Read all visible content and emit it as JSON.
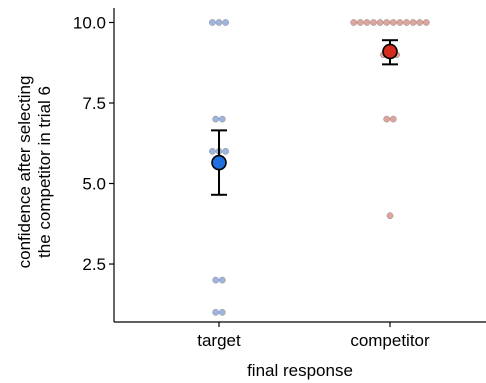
{
  "chart_data": {
    "type": "scatter",
    "title": "",
    "xlabel": "final response",
    "ylabel_lines": [
      "confidence after selecting",
      "the competitor in trial 6"
    ],
    "categories": [
      "target",
      "competitor"
    ],
    "yticks": [
      "2.5",
      "5.0",
      "7.5",
      "10.0"
    ],
    "ylim": [
      0.7,
      10.45
    ],
    "grid": false,
    "legend": "none",
    "series": [
      {
        "category": "target",
        "point_color": "#9db5e0",
        "mean_color": "#1f6fe0",
        "points": [
          10,
          10,
          10,
          7,
          7,
          6,
          6,
          6,
          2,
          2,
          1,
          1
        ],
        "mean": 5.65,
        "ci": [
          4.65,
          6.65
        ]
      },
      {
        "category": "competitor",
        "point_color": "#e0a49c",
        "mean_color": "#d42b1e",
        "points": [
          10,
          10,
          10,
          10,
          10,
          10,
          10,
          10,
          10,
          10,
          10,
          10,
          9,
          9,
          9,
          7,
          7,
          4
        ],
        "mean": 9.1,
        "ci": [
          8.7,
          9.45
        ]
      }
    ]
  }
}
